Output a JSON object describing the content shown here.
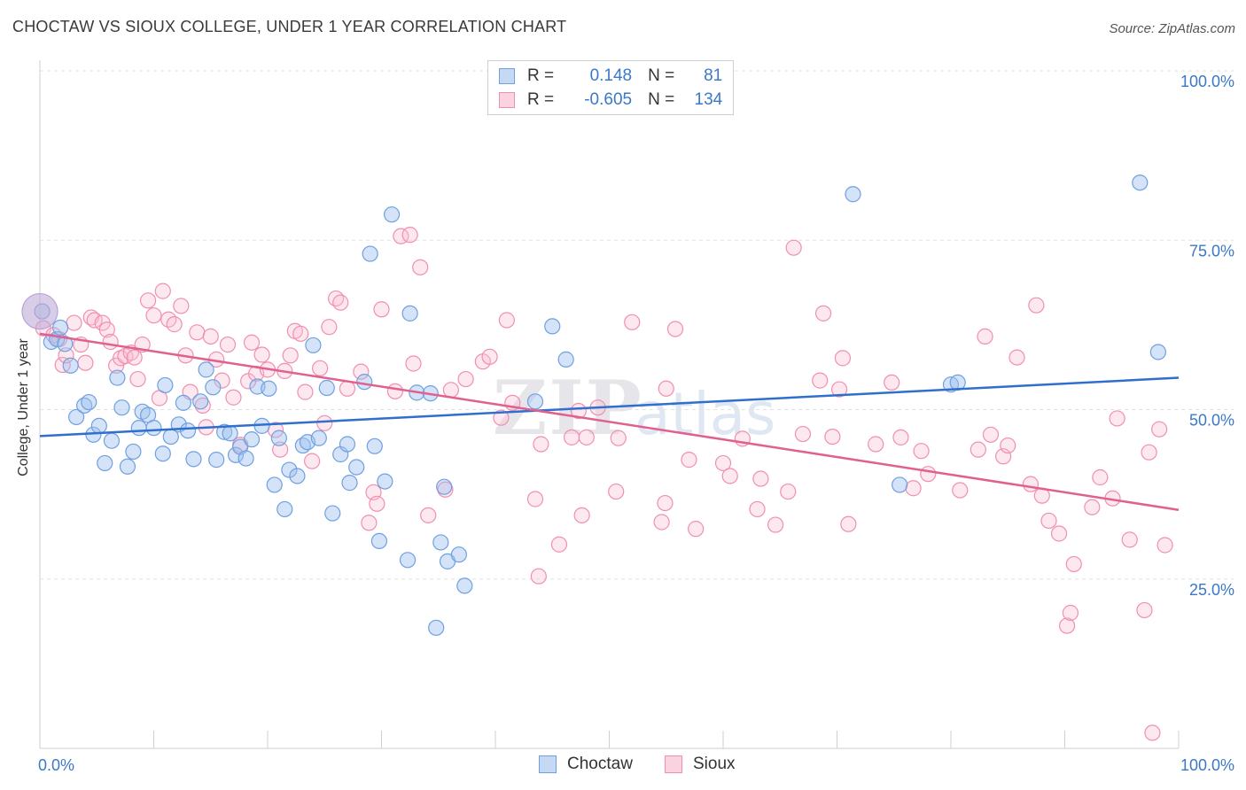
{
  "title": "CHOCTAW VS SIOUX COLLEGE, UNDER 1 YEAR CORRELATION CHART",
  "source": "Source: ZipAtlas.com",
  "legend": {
    "rows": [
      {
        "r_label": "R =",
        "r_value": "0.148",
        "n_label": "N =",
        "n_value": "81",
        "color": "#6fa0e0"
      },
      {
        "r_label": "R =",
        "r_value": "-0.605",
        "n_label": "N =",
        "n_value": "134",
        "color": "#f08fb0"
      }
    ]
  },
  "bottom_legend": [
    "Choctaw",
    "Sioux"
  ],
  "chart_data": {
    "type": "scatter",
    "title": "CHOCTAW VS SIOUX COLLEGE, UNDER 1 YEAR CORRELATION CHART",
    "xlabel": "",
    "ylabel": "College, Under 1 year",
    "xlim": [
      0,
      100
    ],
    "ylim": [
      0,
      100
    ],
    "x_tick_labels": [
      "0.0%",
      "100.0%"
    ],
    "y_tick_labels": [
      "25.0%",
      "50.0%",
      "75.0%",
      "100.0%"
    ],
    "y_ticks": [
      25,
      50,
      75,
      100
    ],
    "grid": true,
    "legend_position": "top-center",
    "colors": {
      "Choctaw": "#6fa0e0",
      "Sioux": "#f08fb0",
      "Choctaw_line": "#2f6fcf",
      "Sioux_line": "#e0608f",
      "axis_text": "#3b78c7"
    },
    "series": [
      {
        "name": "Choctaw",
        "trend": [
          [
            0,
            46.1
          ],
          [
            100,
            54.7
          ]
        ],
        "points": [
          [
            0.2,
            64.5
          ],
          [
            1.0,
            60.0
          ],
          [
            1.5,
            60.4
          ],
          [
            1.8,
            62.1
          ],
          [
            2.2,
            59.7
          ],
          [
            2.7,
            56.5
          ],
          [
            3.2,
            48.9
          ],
          [
            3.9,
            50.6
          ],
          [
            4.3,
            51.1
          ],
          [
            4.7,
            46.3
          ],
          [
            5.2,
            47.6
          ],
          [
            5.7,
            42.1
          ],
          [
            6.3,
            45.4
          ],
          [
            6.8,
            54.7
          ],
          [
            7.2,
            50.3
          ],
          [
            7.7,
            41.6
          ],
          [
            8.2,
            43.8
          ],
          [
            8.7,
            47.3
          ],
          [
            9.0,
            49.7
          ],
          [
            9.5,
            49.2
          ],
          [
            10.0,
            47.3
          ],
          [
            10.8,
            43.5
          ],
          [
            11.0,
            53.6
          ],
          [
            11.5,
            46.0
          ],
          [
            12.2,
            47.8
          ],
          [
            12.6,
            51.0
          ],
          [
            13.0,
            46.9
          ],
          [
            13.5,
            42.7
          ],
          [
            14.1,
            51.2
          ],
          [
            14.6,
            55.9
          ],
          [
            15.2,
            53.3
          ],
          [
            15.5,
            42.6
          ],
          [
            16.2,
            46.7
          ],
          [
            16.7,
            46.5
          ],
          [
            17.2,
            43.3
          ],
          [
            17.6,
            44.5
          ],
          [
            18.1,
            42.8
          ],
          [
            18.6,
            45.6
          ],
          [
            19.1,
            53.4
          ],
          [
            19.5,
            47.6
          ],
          [
            20.1,
            53.1
          ],
          [
            20.6,
            38.9
          ],
          [
            21.0,
            45.8
          ],
          [
            21.5,
            35.3
          ],
          [
            21.9,
            41.1
          ],
          [
            22.6,
            40.2
          ],
          [
            23.1,
            44.7
          ],
          [
            23.5,
            45.2
          ],
          [
            24.0,
            59.5
          ],
          [
            24.5,
            45.8
          ],
          [
            25.2,
            53.2
          ],
          [
            25.7,
            34.7
          ],
          [
            26.4,
            43.4
          ],
          [
            27.0,
            44.9
          ],
          [
            27.2,
            39.2
          ],
          [
            27.8,
            41.5
          ],
          [
            28.5,
            54.1
          ],
          [
            29.0,
            73.0
          ],
          [
            29.4,
            44.6
          ],
          [
            29.8,
            30.6
          ],
          [
            30.3,
            39.4
          ],
          [
            30.9,
            78.8
          ],
          [
            32.3,
            27.8
          ],
          [
            32.5,
            64.2
          ],
          [
            33.1,
            52.5
          ],
          [
            34.3,
            52.4
          ],
          [
            35.2,
            30.4
          ],
          [
            35.5,
            38.6
          ],
          [
            35.8,
            27.6
          ],
          [
            34.8,
            17.8
          ],
          [
            36.8,
            28.6
          ],
          [
            37.3,
            24.0
          ],
          [
            43.5,
            51.2
          ],
          [
            45.0,
            62.3
          ],
          [
            46.2,
            57.4
          ],
          [
            71.4,
            81.8
          ],
          [
            75.5,
            38.9
          ],
          [
            80.0,
            53.7
          ],
          [
            80.6,
            54.0
          ],
          [
            96.6,
            83.5
          ],
          [
            98.2,
            58.5
          ]
        ]
      },
      {
        "name": "Sioux",
        "trend": [
          [
            0,
            61.2
          ],
          [
            100,
            35.2
          ]
        ],
        "points": [
          [
            0.3,
            62.0
          ],
          [
            1.2,
            61.0
          ],
          [
            1.7,
            60.4
          ],
          [
            2.0,
            56.6
          ],
          [
            2.3,
            58.0
          ],
          [
            3.0,
            62.8
          ],
          [
            3.6,
            59.6
          ],
          [
            4.0,
            56.9
          ],
          [
            4.5,
            63.6
          ],
          [
            4.8,
            63.2
          ],
          [
            5.5,
            62.8
          ],
          [
            5.9,
            61.8
          ],
          [
            6.2,
            60.0
          ],
          [
            6.7,
            56.5
          ],
          [
            7.1,
            57.6
          ],
          [
            7.5,
            57.9
          ],
          [
            8.0,
            58.4
          ],
          [
            8.3,
            57.7
          ],
          [
            8.6,
            54.5
          ],
          [
            9.0,
            59.6
          ],
          [
            9.5,
            66.1
          ],
          [
            10.0,
            63.9
          ],
          [
            10.5,
            51.7
          ],
          [
            10.8,
            67.5
          ],
          [
            11.3,
            63.3
          ],
          [
            11.8,
            62.6
          ],
          [
            12.4,
            65.3
          ],
          [
            12.8,
            58.0
          ],
          [
            13.2,
            52.6
          ],
          [
            13.8,
            61.4
          ],
          [
            14.3,
            50.6
          ],
          [
            14.6,
            47.4
          ],
          [
            15.0,
            60.8
          ],
          [
            15.5,
            57.4
          ],
          [
            16.0,
            54.3
          ],
          [
            16.5,
            59.6
          ],
          [
            17.0,
            51.8
          ],
          [
            17.6,
            44.8
          ],
          [
            18.3,
            54.2
          ],
          [
            18.6,
            59.9
          ],
          [
            19.0,
            55.3
          ],
          [
            19.5,
            58.1
          ],
          [
            20.0,
            55.9
          ],
          [
            20.7,
            47.0
          ],
          [
            21.1,
            44.1
          ],
          [
            21.5,
            55.7
          ],
          [
            22.0,
            58.0
          ],
          [
            22.4,
            61.6
          ],
          [
            22.9,
            61.2
          ],
          [
            23.3,
            52.6
          ],
          [
            23.9,
            42.4
          ],
          [
            24.6,
            56.1
          ],
          [
            25.0,
            48.0
          ],
          [
            25.4,
            62.2
          ],
          [
            26.0,
            66.4
          ],
          [
            26.4,
            65.8
          ],
          [
            27.0,
            53.1
          ],
          [
            28.2,
            55.6
          ],
          [
            28.9,
            33.3
          ],
          [
            29.3,
            37.8
          ],
          [
            29.6,
            36.1
          ],
          [
            30.0,
            64.8
          ],
          [
            31.2,
            52.7
          ],
          [
            31.7,
            75.6
          ],
          [
            32.5,
            75.8
          ],
          [
            32.8,
            56.8
          ],
          [
            33.4,
            71.0
          ],
          [
            34.1,
            34.4
          ],
          [
            35.6,
            38.2
          ],
          [
            36.1,
            52.9
          ],
          [
            37.4,
            54.5
          ],
          [
            38.9,
            57.1
          ],
          [
            39.5,
            57.8
          ],
          [
            40.5,
            48.8
          ],
          [
            41.0,
            63.2
          ],
          [
            41.5,
            51.0
          ],
          [
            43.5,
            36.8
          ],
          [
            43.8,
            25.4
          ],
          [
            44.0,
            44.9
          ],
          [
            45.6,
            30.1
          ],
          [
            46.7,
            45.9
          ],
          [
            47.3,
            49.8
          ],
          [
            47.6,
            34.4
          ],
          [
            48.0,
            45.9
          ],
          [
            49.0,
            50.3
          ],
          [
            50.6,
            37.9
          ],
          [
            50.8,
            45.8
          ],
          [
            52.0,
            62.9
          ],
          [
            54.6,
            33.4
          ],
          [
            54.9,
            36.2
          ],
          [
            55.0,
            53.1
          ],
          [
            55.8,
            61.9
          ],
          [
            57.0,
            42.6
          ],
          [
            57.6,
            32.4
          ],
          [
            60.0,
            42.1
          ],
          [
            60.6,
            40.2
          ],
          [
            61.7,
            45.7
          ],
          [
            63.0,
            35.3
          ],
          [
            63.3,
            39.8
          ],
          [
            64.6,
            33.0
          ],
          [
            65.7,
            37.9
          ],
          [
            66.2,
            73.9
          ],
          [
            67.0,
            46.4
          ],
          [
            68.5,
            54.3
          ],
          [
            68.8,
            64.2
          ],
          [
            69.6,
            46.0
          ],
          [
            70.5,
            57.6
          ],
          [
            71.0,
            33.1
          ],
          [
            70.2,
            53.0
          ],
          [
            73.4,
            44.9
          ],
          [
            74.8,
            54.0
          ],
          [
            75.6,
            45.9
          ],
          [
            76.7,
            38.4
          ],
          [
            77.4,
            43.9
          ],
          [
            78.0,
            40.5
          ],
          [
            80.8,
            38.1
          ],
          [
            82.4,
            44.1
          ],
          [
            83.0,
            60.8
          ],
          [
            83.5,
            46.3
          ],
          [
            84.6,
            43.1
          ],
          [
            85.0,
            44.7
          ],
          [
            85.8,
            57.7
          ],
          [
            87.0,
            39.0
          ],
          [
            87.5,
            65.4
          ],
          [
            88.0,
            37.3
          ],
          [
            88.6,
            33.6
          ],
          [
            89.5,
            31.7
          ],
          [
            90.2,
            18.1
          ],
          [
            90.5,
            20.0
          ],
          [
            90.8,
            27.2
          ],
          [
            92.4,
            35.6
          ],
          [
            93.1,
            40.0
          ],
          [
            94.6,
            48.7
          ],
          [
            94.2,
            36.9
          ],
          [
            95.7,
            30.8
          ],
          [
            97.0,
            20.4
          ],
          [
            97.4,
            43.7
          ],
          [
            98.3,
            47.1
          ],
          [
            98.8,
            30.0
          ],
          [
            97.7,
            2.3
          ]
        ]
      }
    ]
  }
}
